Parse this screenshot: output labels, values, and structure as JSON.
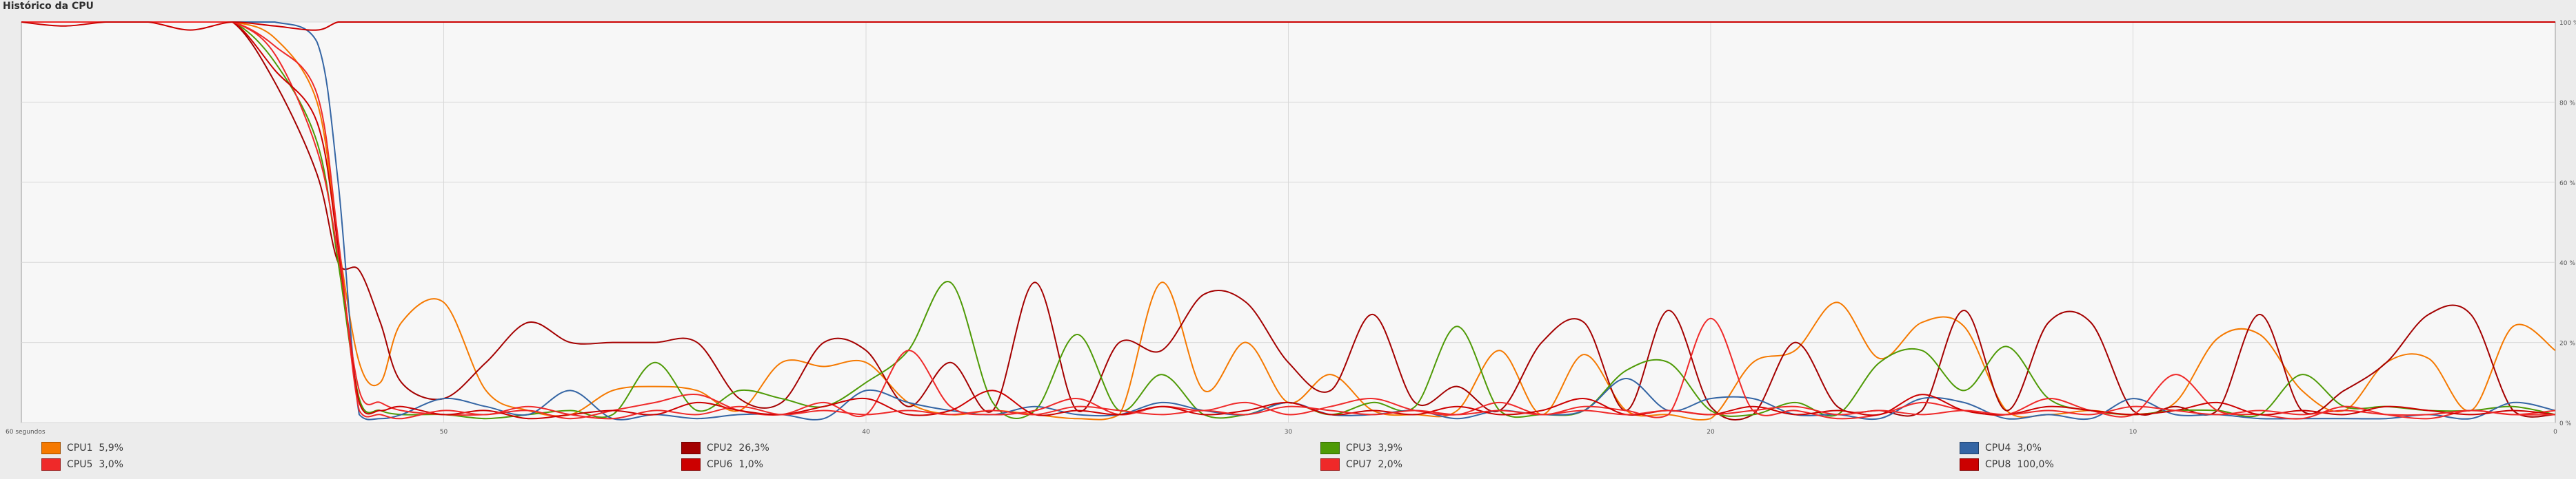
{
  "section": {
    "title": "Histórico da CPU"
  },
  "chart_data": {
    "type": "line",
    "title": "",
    "xlabel": "",
    "ylabel": "",
    "x_range": [
      60,
      0
    ],
    "ylim": [
      0,
      100
    ],
    "x_tick_labels": [
      "60 segundos",
      "50",
      "40",
      "30",
      "20",
      "10",
      "0"
    ],
    "x_tick_values": [
      60,
      50,
      40,
      30,
      20,
      10,
      0
    ],
    "y_tick_labels": [
      "100 %",
      "80 %",
      "60 %",
      "40 %",
      "20 %",
      "0 %"
    ],
    "y_tick_values": [
      100,
      80,
      60,
      40,
      20,
      0
    ],
    "grid": true,
    "legend_position": "bottom",
    "x": [
      60,
      59,
      58,
      57,
      56,
      55,
      54,
      53,
      52.5,
      52,
      51.5,
      51,
      50,
      49,
      48,
      47,
      46,
      45,
      44,
      43,
      42,
      41,
      40,
      39,
      38,
      37,
      36,
      35,
      34,
      33,
      32,
      31,
      30,
      29,
      28,
      27,
      26,
      25,
      24,
      23,
      22,
      21,
      20,
      19,
      18,
      17,
      16,
      15,
      14,
      13,
      12,
      11,
      10,
      9,
      8,
      7,
      6,
      5,
      4,
      3,
      2,
      1,
      0
    ],
    "series": [
      {
        "name": "CPU1",
        "color": "#f57900",
        "values": [
          100,
          100,
          100,
          100,
          100,
          100,
          96,
          80,
          45,
          15,
          10,
          25,
          30,
          8,
          3,
          2,
          8,
          9,
          8,
          3,
          15,
          14,
          15,
          5,
          2,
          3,
          2,
          1,
          2,
          35,
          8,
          20,
          5,
          12,
          3,
          2,
          3,
          18,
          2,
          17,
          3,
          2,
          1,
          15,
          18,
          30,
          16,
          25,
          24,
          3,
          2,
          3,
          2,
          5,
          21,
          22,
          8,
          3,
          15,
          16,
          3,
          24,
          18
        ]
      },
      {
        "name": "CPU2",
        "color": "#a40000",
        "values": [
          100,
          100,
          100,
          100,
          100,
          100,
          85,
          62,
          40,
          38,
          25,
          10,
          6,
          15,
          25,
          20,
          20,
          20,
          20,
          6,
          5,
          20,
          18,
          4,
          15,
          3,
          35,
          3,
          20,
          18,
          32,
          30,
          15,
          8,
          27,
          5,
          9,
          3,
          20,
          25,
          3,
          28,
          4,
          2,
          20,
          4,
          3,
          3,
          28,
          3,
          25,
          25,
          3,
          4,
          3,
          27,
          3,
          8,
          15,
          27,
          27,
          3,
          2
        ]
      },
      {
        "name": "CPU3",
        "color": "#4e9a06",
        "values": [
          100,
          100,
          100,
          100,
          100,
          100,
          90,
          70,
          40,
          6,
          3,
          2,
          2,
          1,
          2,
          3,
          2,
          15,
          3,
          8,
          6,
          4,
          10,
          18,
          35,
          5,
          3,
          22,
          3,
          12,
          2,
          2,
          5,
          2,
          5,
          4,
          24,
          3,
          2,
          3,
          13,
          15,
          3,
          2,
          5,
          2,
          15,
          18,
          8,
          19,
          6,
          3,
          2,
          3,
          3,
          2,
          12,
          4,
          4,
          3,
          3,
          4,
          2
        ]
      },
      {
        "name": "CPU4",
        "color": "#3465a4",
        "values": [
          100,
          100,
          100,
          100,
          100,
          100,
          100,
          95,
          60,
          2,
          1,
          2,
          6,
          4,
          2,
          8,
          1,
          2,
          1,
          2,
          2,
          1,
          8,
          5,
          3,
          2,
          4,
          2,
          2,
          5,
          3,
          2,
          5,
          2,
          2,
          3,
          1,
          3,
          2,
          3,
          11,
          3,
          6,
          6,
          2,
          2,
          1,
          6,
          5,
          1,
          2,
          1,
          6,
          2,
          2,
          1,
          1,
          1,
          1,
          2,
          1,
          5,
          3
        ]
      },
      {
        "name": "CPU5",
        "color": "#ef2929",
        "values": [
          100,
          100,
          100,
          100,
          100,
          100,
          92,
          68,
          42,
          8,
          5,
          3,
          2,
          2,
          3,
          1,
          3,
          5,
          7,
          3,
          2,
          5,
          2,
          18,
          4,
          2,
          3,
          6,
          2,
          4,
          3,
          5,
          2,
          4,
          6,
          3,
          2,
          5,
          2,
          4,
          3,
          2,
          26,
          3,
          3,
          1,
          2,
          5,
          3,
          2,
          6,
          3,
          2,
          12,
          3,
          2,
          1,
          4,
          2,
          1,
          3,
          2,
          3
        ]
      },
      {
        "name": "CPU6",
        "color": "#cc0000",
        "values": [
          100,
          100,
          100,
          100,
          100,
          100,
          88,
          75,
          44,
          5,
          3,
          4,
          2,
          3,
          1,
          2,
          3,
          2,
          5,
          3,
          2,
          4,
          6,
          2,
          3,
          8,
          2,
          3,
          2,
          4,
          2,
          3,
          5,
          2,
          3,
          2,
          4,
          2,
          3,
          6,
          2,
          3,
          2,
          4,
          2,
          3,
          2,
          7,
          3,
          2,
          4,
          3,
          2,
          3,
          5,
          2,
          3,
          2,
          4,
          3,
          2,
          3,
          2
        ]
      },
      {
        "name": "CPU7",
        "color": "#ef2929",
        "values": [
          100,
          100,
          100,
          100,
          100,
          100,
          94,
          82,
          46,
          3,
          2,
          1,
          3,
          2,
          4,
          2,
          1,
          3,
          2,
          4,
          2,
          3,
          2,
          3,
          2,
          3,
          2,
          4,
          3,
          2,
          3,
          2,
          4,
          3,
          2,
          3,
          2,
          3,
          2,
          3,
          2,
          3,
          2,
          3,
          4,
          2,
          3,
          2,
          3,
          2,
          3,
          2,
          4,
          3,
          2,
          3,
          2,
          3,
          2,
          2,
          3,
          2,
          2
        ]
      },
      {
        "name": "CPU8",
        "color": "#cc0000",
        "values": [
          100,
          99,
          100,
          100,
          98,
          100,
          99,
          98,
          100,
          100,
          100,
          100,
          100,
          100,
          100,
          100,
          100,
          100,
          100,
          100,
          100,
          100,
          100,
          100,
          100,
          100,
          100,
          100,
          100,
          100,
          100,
          100,
          100,
          100,
          100,
          100,
          100,
          100,
          100,
          100,
          100,
          100,
          100,
          100,
          100,
          100,
          100,
          100,
          100,
          100,
          100,
          100,
          100,
          100,
          100,
          100,
          100,
          100,
          100,
          100,
          100,
          100,
          100
        ]
      }
    ]
  },
  "legend": [
    {
      "label": "CPU1",
      "value": "5,9%",
      "color": "#f57900"
    },
    {
      "label": "CPU2",
      "value": "26,3%",
      "color": "#a40000"
    },
    {
      "label": "CPU3",
      "value": "3,9%",
      "color": "#4e9a06"
    },
    {
      "label": "CPU4",
      "value": "3,0%",
      "color": "#3465a4"
    },
    {
      "label": "CPU5",
      "value": "3,0%",
      "color": "#ef2929"
    },
    {
      "label": "CPU6",
      "value": "1,0%",
      "color": "#cc0000"
    },
    {
      "label": "CPU7",
      "value": "2,0%",
      "color": "#ef2929"
    },
    {
      "label": "CPU8",
      "value": "100,0%",
      "color": "#cc0000"
    }
  ]
}
